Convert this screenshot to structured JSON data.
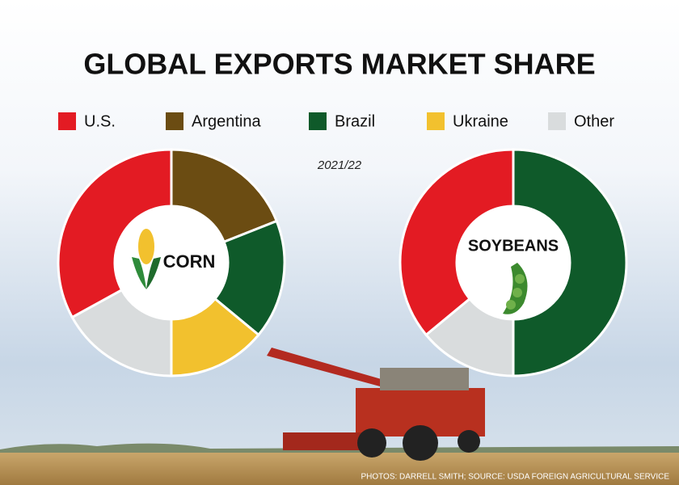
{
  "title": "GLOBAL EXPORTS MARKET SHARE",
  "subtitle": "2021/22",
  "legend": {
    "categories": [
      "U.S.",
      "Argentina",
      "Brazil",
      "Ukraine",
      "Other"
    ],
    "colors": [
      "#e31b23",
      "#6b4c12",
      "#0f5a2a",
      "#f2c12e",
      "#d9dcdd"
    ]
  },
  "credit": "PHOTOS: DARRELL SMITH; SOURCE: USDA FOREIGN AGRICULTURAL SERVICE",
  "chart_data": [
    {
      "type": "donut",
      "title": "CORN",
      "values": [
        33,
        19,
        17,
        14,
        17
      ]
    },
    {
      "type": "donut",
      "title": "SOYBEANS",
      "values": [
        36,
        0,
        50,
        0,
        14
      ]
    }
  ]
}
